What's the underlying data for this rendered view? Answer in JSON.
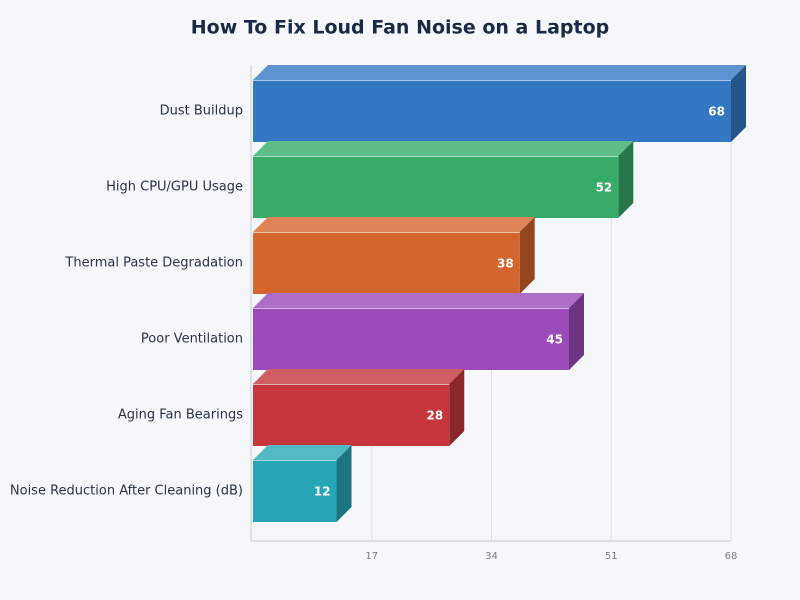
{
  "chart_data": {
    "type": "bar3d-horizontal",
    "title": "How To Fix Loud Fan Noise on a Laptop",
    "categories": [
      "Dust Buildup",
      "High CPU/GPU Usage",
      "Thermal Paste Degradation",
      "Poor Ventilation",
      "Aging Fan Bearings",
      "Noise Reduction After Cleaning (dB)"
    ],
    "values": [
      68,
      52,
      38,
      45,
      28,
      12
    ],
    "colors": [
      "#3478c4",
      "#36ab6a",
      "#d4662d",
      "#9a4ab9",
      "#c6363c",
      "#26a6b5"
    ],
    "xlim": [
      0,
      68
    ],
    "xticks": [
      17,
      34,
      51,
      68
    ],
    "grid": true
  }
}
